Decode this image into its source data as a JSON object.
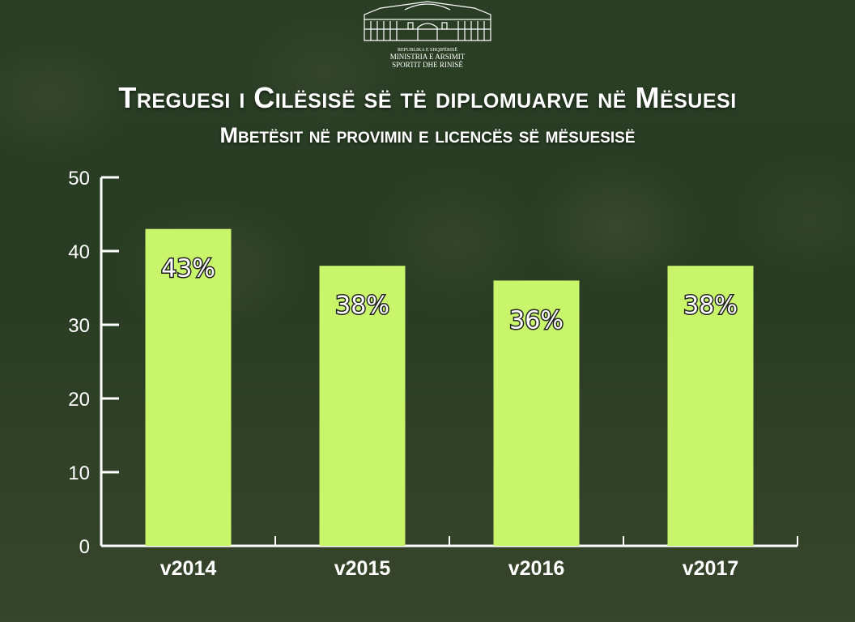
{
  "header": {
    "logo_line1": "REPUBLIKA E SHQIPËRISË",
    "logo_line2": "MINISTRIA E ARSIMIT",
    "logo_line3": "SPORTIT DHE RINISË"
  },
  "colors": {
    "bar": "#c8f56a",
    "axis": "#ffffff",
    "overlay": "#1a3414"
  },
  "chart_data": {
    "type": "bar",
    "title": "Treguesi i Cilësisë së të diplomuarve në Mësuesi",
    "subtitle": "Mbetësit në provimin e licencës së mësuesisë",
    "categories": [
      "v2014",
      "v2015",
      "v2016",
      "v2017"
    ],
    "values": [
      43,
      38,
      36,
      38
    ],
    "data_labels": [
      "43%",
      "38%",
      "36%",
      "38%"
    ],
    "ylim": [
      0,
      50
    ],
    "yticks": [
      0,
      10,
      20,
      30,
      40,
      50
    ],
    "xlabel": "",
    "ylabel": "",
    "grid": false,
    "legend": "none"
  }
}
